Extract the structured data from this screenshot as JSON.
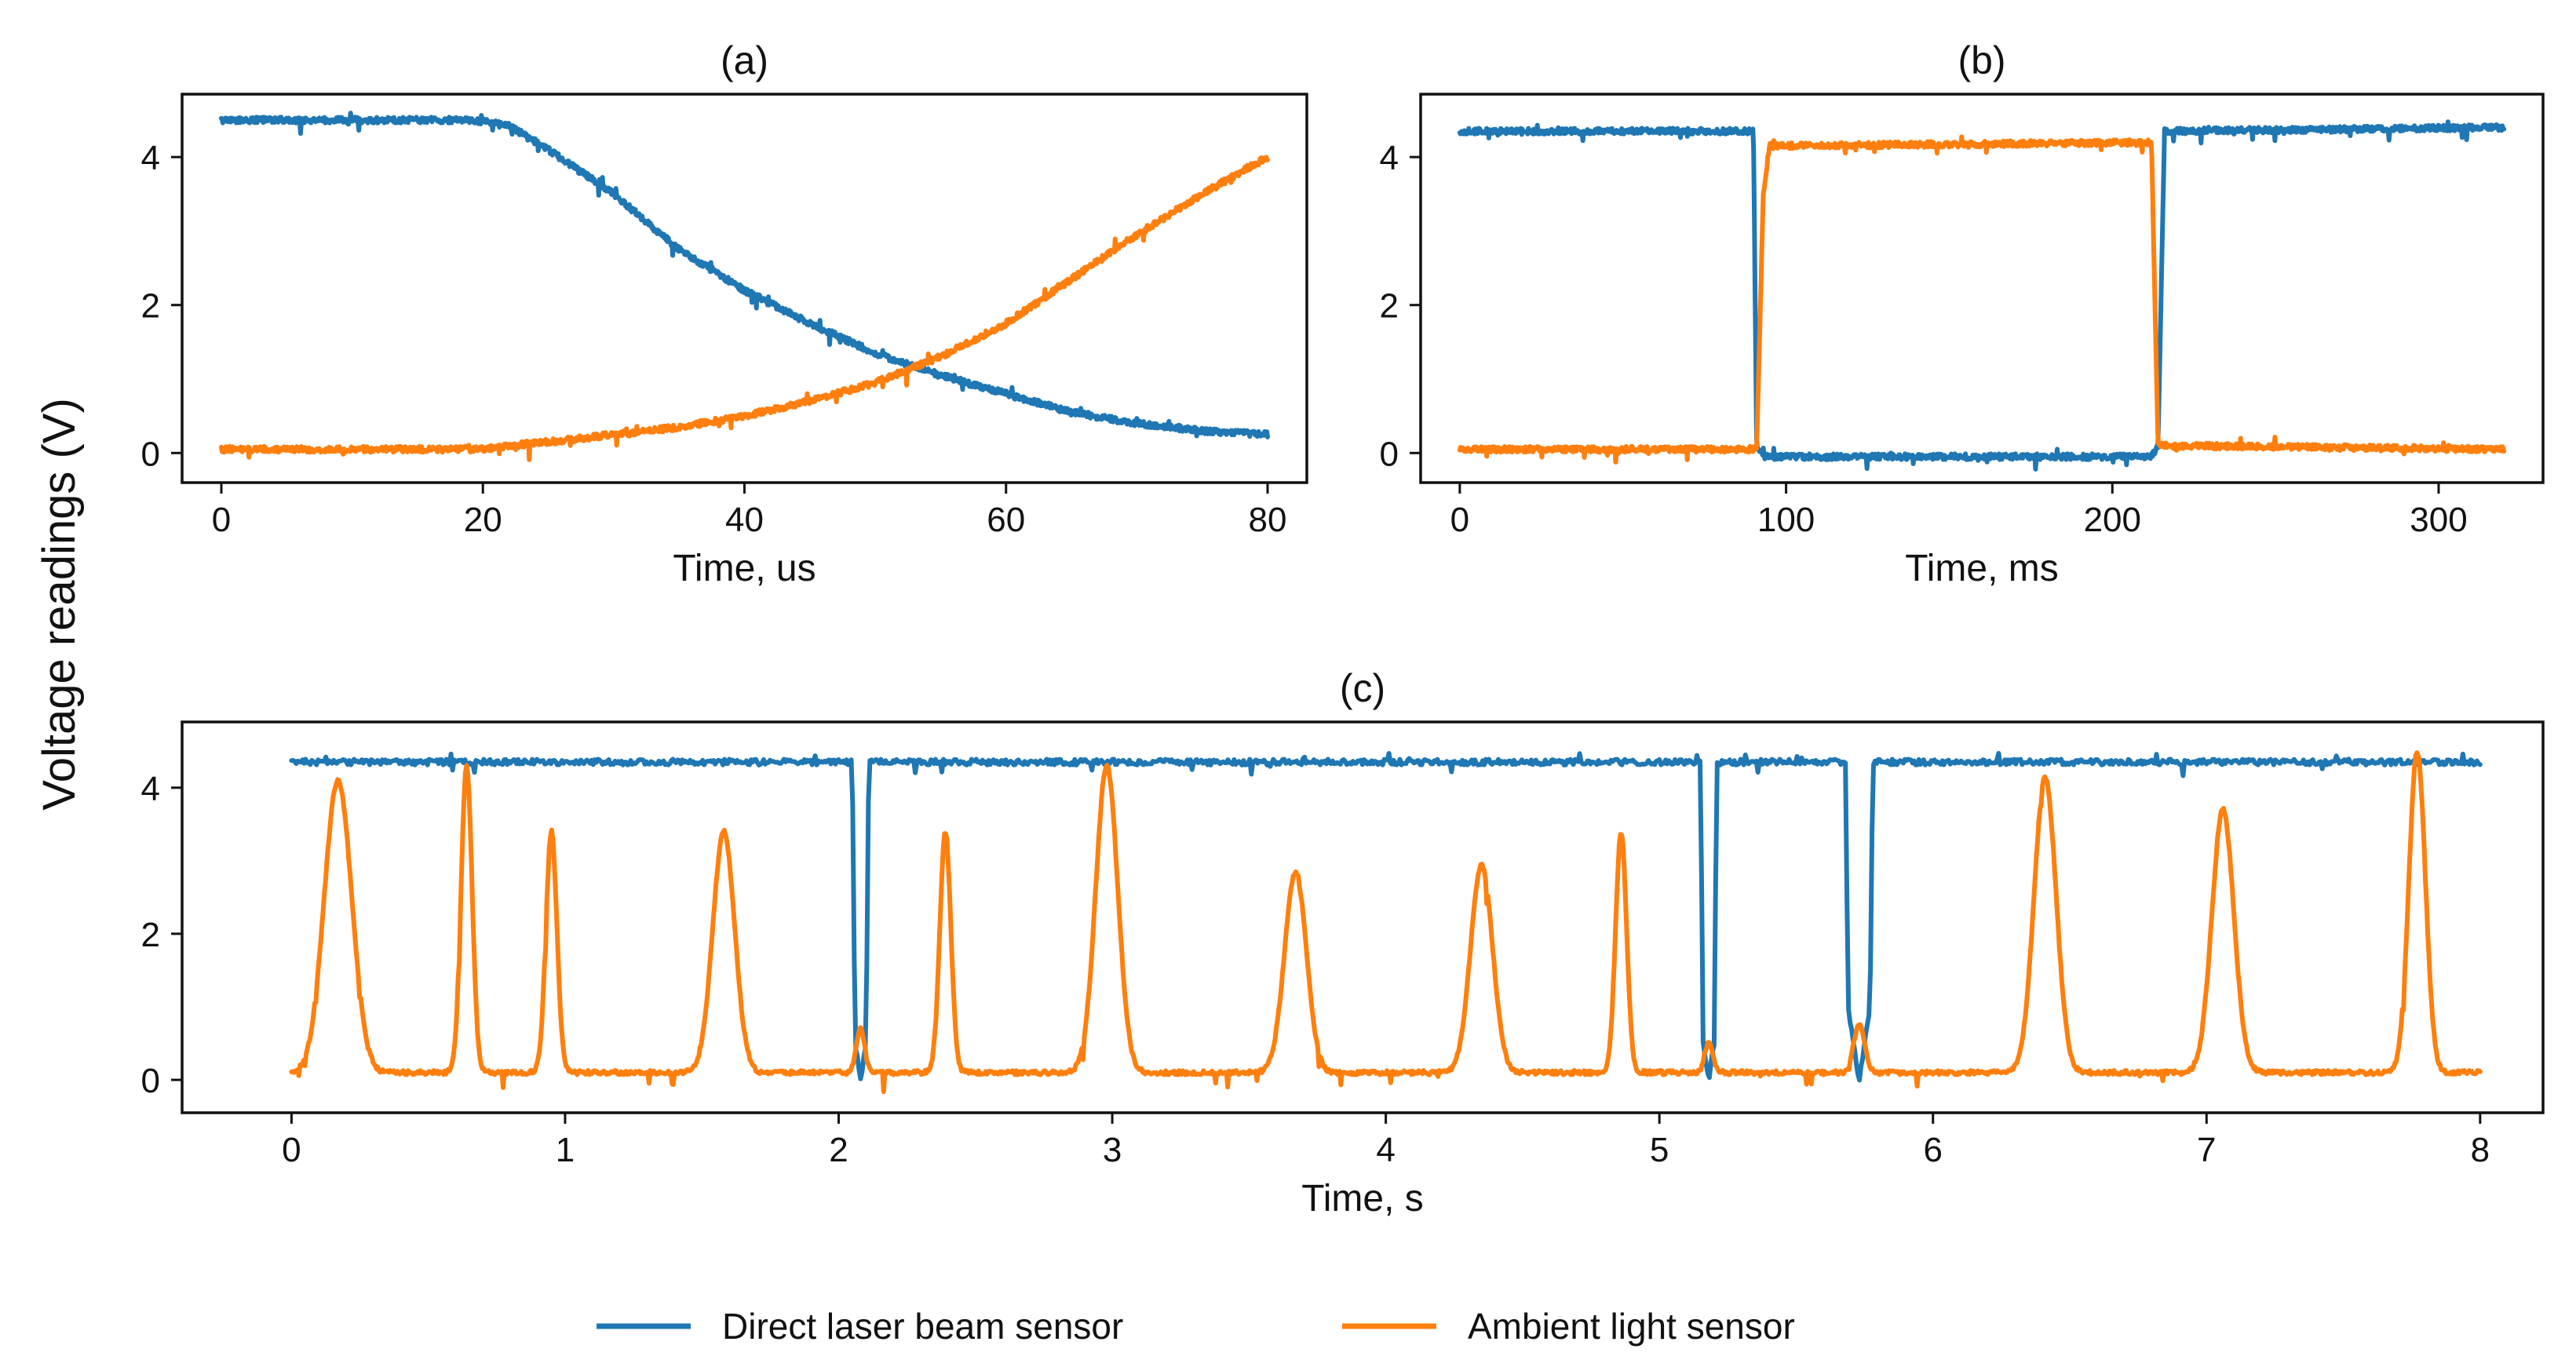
{
  "figure": {
    "ylabel": "Voltage readings (V)",
    "legend": [
      {
        "label": "Direct laser beam sensor",
        "color": "#1f77b4"
      },
      {
        "label": "Ambient light sensor",
        "color": "#ff7f0e"
      }
    ]
  },
  "chart_data": [
    {
      "type": "line",
      "title": "(a)",
      "xlabel": "Time, us",
      "ylabel": "",
      "xlim": [
        -3,
        83
      ],
      "ylim": [
        -0.4,
        4.85
      ],
      "xticks": [
        0,
        20,
        40,
        60,
        80
      ],
      "yticks": [
        0,
        2,
        4
      ],
      "tick_labels_x": [
        "0",
        "20",
        "40",
        "60",
        "80"
      ],
      "tick_labels_y": [
        "0",
        "2",
        "4"
      ],
      "series": [
        {
          "name": "Direct laser beam sensor",
          "color": "#1f77b4",
          "x": [
            0,
            5,
            10,
            15,
            18,
            20,
            22,
            25,
            30,
            35,
            40,
            45,
            50,
            55,
            60,
            65,
            70,
            75,
            80
          ],
          "y": [
            4.5,
            4.5,
            4.5,
            4.5,
            4.5,
            4.48,
            4.42,
            4.1,
            3.5,
            2.75,
            2.2,
            1.75,
            1.35,
            1.05,
            0.8,
            0.55,
            0.4,
            0.3,
            0.25
          ]
        },
        {
          "name": "Ambient light sensor",
          "color": "#ff7f0e",
          "x": [
            0,
            5,
            10,
            15,
            20,
            22,
            25,
            30,
            35,
            40,
            45,
            50,
            55,
            60,
            65,
            70,
            75,
            80
          ],
          "y": [
            0.05,
            0.05,
            0.05,
            0.05,
            0.05,
            0.1,
            0.15,
            0.25,
            0.35,
            0.5,
            0.7,
            0.95,
            1.3,
            1.75,
            2.35,
            2.95,
            3.5,
            4.0
          ]
        }
      ]
    },
    {
      "type": "line",
      "title": "(b)",
      "xlabel": "Time, ms",
      "ylabel": "",
      "xlim": [
        -12,
        332
      ],
      "ylim": [
        -0.4,
        4.85
      ],
      "xticks": [
        0,
        100,
        200,
        300
      ],
      "yticks": [
        0,
        2,
        4
      ],
      "tick_labels_x": [
        "0",
        "100",
        "200",
        "300"
      ],
      "tick_labels_y": [
        "0",
        "2",
        "4"
      ],
      "series": [
        {
          "name": "Direct laser beam sensor",
          "color": "#1f77b4",
          "x": [
            0,
            90,
            91,
            93,
            212,
            214,
            216,
            320
          ],
          "y": [
            4.35,
            4.35,
            0.1,
            -0.05,
            -0.05,
            0.1,
            4.35,
            4.4
          ]
        },
        {
          "name": "Ambient light sensor",
          "color": "#ff7f0e",
          "x": [
            0,
            91,
            93,
            95,
            211,
            212,
            214,
            320
          ],
          "y": [
            0.05,
            0.05,
            3.5,
            4.15,
            4.2,
            4.2,
            0.1,
            0.05
          ]
        }
      ]
    },
    {
      "type": "line",
      "title": "(c)",
      "xlabel": "Time, s",
      "ylabel": "",
      "xlim": [
        -0.4,
        8.23
      ],
      "ylim": [
        -0.45,
        4.9
      ],
      "xticks": [
        0,
        1,
        2,
        3,
        4,
        5,
        6,
        7,
        8
      ],
      "yticks": [
        0,
        2,
        4
      ],
      "tick_labels_x": [
        "0",
        "1",
        "2",
        "3",
        "4",
        "5",
        "6",
        "7",
        "8"
      ],
      "tick_labels_y": [
        "0",
        "2",
        "4"
      ],
      "series": [
        {
          "name": "Direct laser beam sensor",
          "color": "#1f77b4",
          "x": [
            0,
            2.05,
            2.06,
            2.08,
            2.1,
            2.11,
            5.15,
            5.16,
            5.18,
            5.2,
            5.21,
            5.68,
            5.69,
            5.73,
            5.77,
            5.78,
            8.0
          ],
          "y": [
            4.35,
            4.35,
            0.5,
            0.0,
            0.5,
            4.35,
            4.35,
            0.5,
            0.0,
            0.5,
            4.35,
            4.35,
            1.0,
            0.0,
            1.0,
            4.35,
            4.35
          ]
        },
        {
          "name": "Ambient light sensor",
          "color": "#ff7f0e",
          "baseline": 0.1,
          "peaks": [
            {
              "t": 0.17,
              "h": 4.1,
              "w": 0.05
            },
            {
              "t": 0.64,
              "h": 4.3,
              "w": 0.02
            },
            {
              "t": 0.95,
              "h": 3.4,
              "w": 0.02
            },
            {
              "t": 1.58,
              "h": 3.4,
              "w": 0.04
            },
            {
              "t": 2.08,
              "h": 0.7,
              "w": 0.015
            },
            {
              "t": 2.39,
              "h": 3.4,
              "w": 0.02
            },
            {
              "t": 2.98,
              "h": 4.3,
              "w": 0.04
            },
            {
              "t": 3.67,
              "h": 2.85,
              "w": 0.04
            },
            {
              "t": 4.35,
              "h": 2.95,
              "w": 0.04
            },
            {
              "t": 4.86,
              "h": 3.4,
              "w": 0.02
            },
            {
              "t": 5.18,
              "h": 0.5,
              "w": 0.015
            },
            {
              "t": 5.73,
              "h": 0.75,
              "w": 0.02
            },
            {
              "t": 6.41,
              "h": 4.15,
              "w": 0.04
            },
            {
              "t": 7.06,
              "h": 3.7,
              "w": 0.04
            },
            {
              "t": 7.77,
              "h": 4.5,
              "w": 0.03
            }
          ]
        }
      ]
    }
  ]
}
